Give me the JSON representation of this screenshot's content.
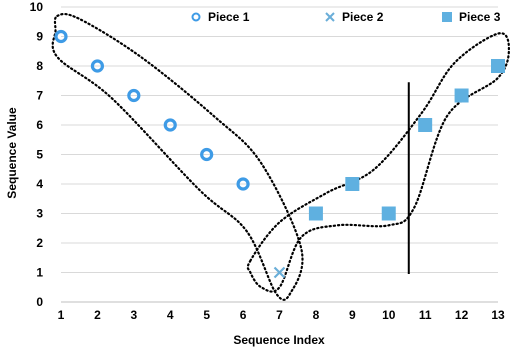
{
  "chart_data": {
    "type": "scatter",
    "xlabel": "Sequence Index",
    "ylabel": "Sequence Value",
    "xlim": [
      1,
      13
    ],
    "ylim": [
      0,
      10
    ],
    "x_ticks": [
      "1",
      "2",
      "3",
      "4",
      "5",
      "6",
      "7",
      "8",
      "9",
      "10",
      "11",
      "12",
      "13"
    ],
    "y_ticks": [
      "0",
      "1",
      "2",
      "3",
      "4",
      "5",
      "6",
      "7",
      "8",
      "9",
      "10"
    ],
    "grid": "horizontal",
    "legend_position": "top",
    "series": [
      {
        "name": "Piece 1",
        "marker": "circle-open",
        "color": "#3e9be6",
        "x": [
          1,
          2,
          3,
          4,
          5,
          6
        ],
        "y": [
          9,
          8,
          7,
          6,
          5,
          4
        ]
      },
      {
        "name": "Piece 2",
        "marker": "x",
        "color": "#6aaed8",
        "x": [
          7
        ],
        "y": [
          1
        ]
      },
      {
        "name": "Piece 3",
        "marker": "square",
        "color": "#5fb0e0",
        "x": [
          8,
          9,
          10,
          11,
          12,
          13
        ],
        "y": [
          3,
          4,
          3,
          6,
          7,
          8
        ]
      }
    ],
    "annotations": {
      "vertical_line_x": 10.55,
      "vertical_line_y": [
        0.95,
        7.45
      ],
      "enclosures": [
        {
          "covers": "Piece 1 and Piece 2",
          "path": [
            [
              0.9,
              9.7
            ],
            [
              1.5,
              9.6
            ],
            [
              3.2,
              8.3
            ],
            [
              5.2,
              6.3
            ],
            [
              6.5,
              4.7
            ],
            [
              7.6,
              1.8
            ],
            [
              7.3,
              0.3
            ],
            [
              6.9,
              0.3
            ],
            [
              6.1,
              2.4
            ],
            [
              4.8,
              3.8
            ],
            [
              2.4,
              6.9
            ],
            [
              0.9,
              8.3
            ],
            [
              0.85,
              9.2
            ]
          ]
        },
        {
          "covers": "Piece 2 and Piece 3",
          "path": [
            [
              6.2,
              1.4
            ],
            [
              7.0,
              2.7
            ],
            [
              8.3,
              3.7
            ],
            [
              9.6,
              4.5
            ],
            [
              10.9,
              6.4
            ],
            [
              11.8,
              8.1
            ],
            [
              13.0,
              9.1
            ],
            [
              13.3,
              8.6
            ],
            [
              13.0,
              7.6
            ],
            [
              11.6,
              6.3
            ],
            [
              10.7,
              3.2
            ],
            [
              10.0,
              2.6
            ],
            [
              8.6,
              2.6
            ],
            [
              7.6,
              2.2
            ],
            [
              7.0,
              0.5
            ],
            [
              6.5,
              0.5
            ],
            [
              6.2,
              1.0
            ]
          ]
        }
      ]
    }
  }
}
